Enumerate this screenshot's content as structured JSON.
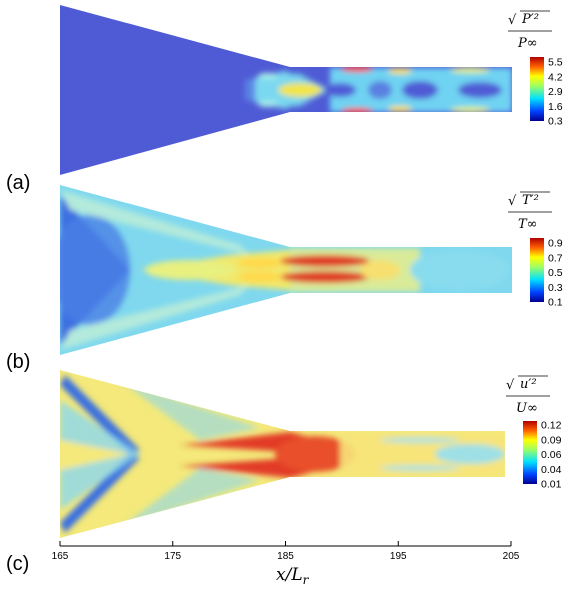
{
  "figure": {
    "axis": {
      "ticks": [
        "165",
        "175",
        "185",
        "195",
        "205"
      ],
      "xlabel": "x/L",
      "xlabel_sub": "r"
    },
    "panels": [
      {
        "label": "(a)",
        "cb_num": "P′²",
        "cb_den": "P∞",
        "cb_ticks": [
          "5.5",
          "4.2",
          "2.9",
          "1.6",
          "0.3"
        ],
        "background_color": "#4f5bd5"
      },
      {
        "label": "(b)",
        "cb_num": "T′²",
        "cb_den": "T∞",
        "cb_ticks": [
          "0.9",
          "0.7",
          "0.5",
          "0.3",
          "0.1"
        ],
        "background_color": "#7fd8ee"
      },
      {
        "label": "(c)",
        "cb_num": "u′²",
        "cb_den": "U∞",
        "cb_ticks": [
          "0.12",
          "0.09",
          "0.06",
          "0.04",
          "0.01"
        ],
        "background_color": "#f4e97a"
      }
    ]
  }
}
